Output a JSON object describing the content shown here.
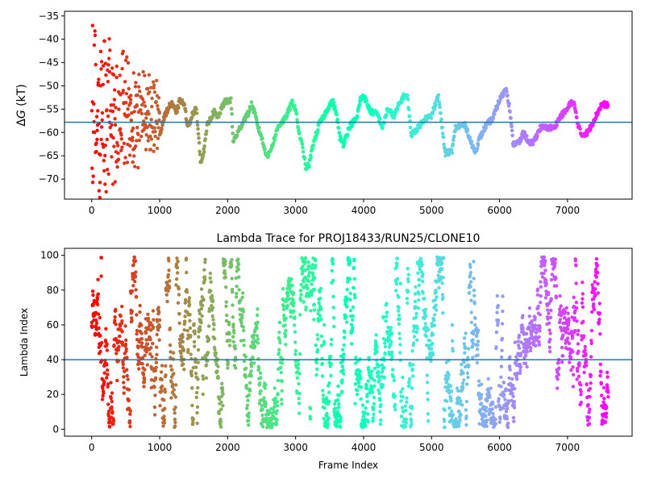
{
  "chart_data": [
    {
      "type": "scatter",
      "title": "",
      "xlabel": "",
      "ylabel": "ΔG (kT)",
      "ylabel_parts": {
        "delta": "Δ",
        "symbol": "G",
        "unit": " (kT)"
      },
      "xlim": [
        -400,
        7950
      ],
      "ylim": [
        -74.3,
        -34.0
      ],
      "xticks": [
        0,
        1000,
        2000,
        3000,
        4000,
        5000,
        6000,
        7000
      ],
      "yticks": [
        -70,
        -65,
        -60,
        -55,
        -50,
        -45,
        -40,
        -35
      ],
      "hline": -57.8,
      "hline_color": "#1f77b4",
      "colormap": "rainbow",
      "point_color": "frame index, red at start to violet at end",
      "frames": 7600,
      "trace_anchors": [
        [
          1000,
          -60.5
        ],
        [
          1060,
          -57
        ],
        [
          1120,
          -55
        ],
        [
          1180,
          -53.5
        ],
        [
          1240,
          -56
        ],
        [
          1300,
          -53
        ],
        [
          1360,
          -54
        ],
        [
          1420,
          -59
        ],
        [
          1480,
          -56
        ],
        [
          1540,
          -55
        ],
        [
          1580,
          -62
        ],
        [
          1600,
          -66.5
        ],
        [
          1650,
          -64
        ],
        [
          1700,
          -58.5
        ],
        [
          1750,
          -57
        ],
        [
          1800,
          -55.5
        ],
        [
          1850,
          -57
        ],
        [
          1950,
          -53.5
        ],
        [
          2050,
          -53
        ],
        [
          2080,
          -62
        ],
        [
          2150,
          -60
        ],
        [
          2250,
          -57
        ],
        [
          2300,
          -56
        ],
        [
          2350,
          -54
        ],
        [
          2400,
          -56
        ],
        [
          2450,
          -59
        ],
        [
          2500,
          -61
        ],
        [
          2550,
          -64
        ],
        [
          2600,
          -65
        ],
        [
          2650,
          -63
        ],
        [
          2750,
          -58.5
        ],
        [
          2850,
          -57
        ],
        [
          2950,
          -53.5
        ],
        [
          3000,
          -55
        ],
        [
          3050,
          -60
        ],
        [
          3100,
          -63
        ],
        [
          3150,
          -67.5
        ],
        [
          3200,
          -67
        ],
        [
          3250,
          -63
        ],
        [
          3350,
          -58
        ],
        [
          3400,
          -57
        ],
        [
          3500,
          -54
        ],
        [
          3550,
          -53.5
        ],
        [
          3600,
          -56
        ],
        [
          3650,
          -61
        ],
        [
          3700,
          -62.5
        ],
        [
          3800,
          -58.5
        ],
        [
          3900,
          -57
        ],
        [
          3950,
          -53
        ],
        [
          4000,
          -52
        ],
        [
          4100,
          -55.5
        ],
        [
          4200,
          -56
        ],
        [
          4280,
          -59
        ],
        [
          4350,
          -55
        ],
        [
          4450,
          -56.5
        ],
        [
          4520,
          -54
        ],
        [
          4600,
          -52
        ],
        [
          4650,
          -52.5
        ],
        [
          4700,
          -60.5
        ],
        [
          4800,
          -59
        ],
        [
          4900,
          -57
        ],
        [
          5000,
          -56.5
        ],
        [
          5050,
          -54
        ],
        [
          5100,
          -52
        ],
        [
          5200,
          -64.5
        ],
        [
          5300,
          -64
        ],
        [
          5350,
          -59
        ],
        [
          5450,
          -58.5
        ],
        [
          5500,
          -58.5
        ],
        [
          5600,
          -63
        ],
        [
          5650,
          -64
        ],
        [
          5700,
          -61.5
        ],
        [
          5800,
          -58.5
        ],
        [
          5900,
          -57
        ],
        [
          6000,
          -53
        ],
        [
          6100,
          -50.5
        ],
        [
          6150,
          -55
        ],
        [
          6200,
          -62.5
        ],
        [
          6300,
          -62
        ],
        [
          6350,
          -60
        ],
        [
          6450,
          -62.5
        ],
        [
          6500,
          -62
        ],
        [
          6600,
          -59
        ],
        [
          6700,
          -59
        ],
        [
          6800,
          -59
        ],
        [
          6900,
          -56.5
        ],
        [
          7000,
          -55
        ],
        [
          7050,
          -53.5
        ],
        [
          7100,
          -54
        ],
        [
          7150,
          -58
        ],
        [
          7200,
          -60.5
        ],
        [
          7300,
          -60
        ],
        [
          7400,
          -57
        ],
        [
          7500,
          -54
        ],
        [
          7600,
          -54
        ]
      ],
      "early_scatter": {
        "x_range": [
          0,
          1000
        ],
        "y_range": [
          -73,
          -34.5
        ]
      }
    },
    {
      "type": "scatter",
      "title": "Lambda Trace for PROJ18433/RUN25/CLONE10",
      "xlabel": "Frame Index",
      "ylabel": "Lambda Index",
      "xlim": [
        -400,
        7950
      ],
      "ylim": [
        -4,
        104
      ],
      "xticks": [
        0,
        1000,
        2000,
        3000,
        4000,
        5000,
        6000,
        7000
      ],
      "yticks": [
        0,
        20,
        40,
        60,
        80,
        100
      ],
      "hline": 40,
      "hline_color": "#1f77b4",
      "colormap": "rainbow",
      "point_color": "frame index, red at start to violet at end",
      "frames": 7600,
      "value_range": [
        1,
        99
      ]
    }
  ]
}
